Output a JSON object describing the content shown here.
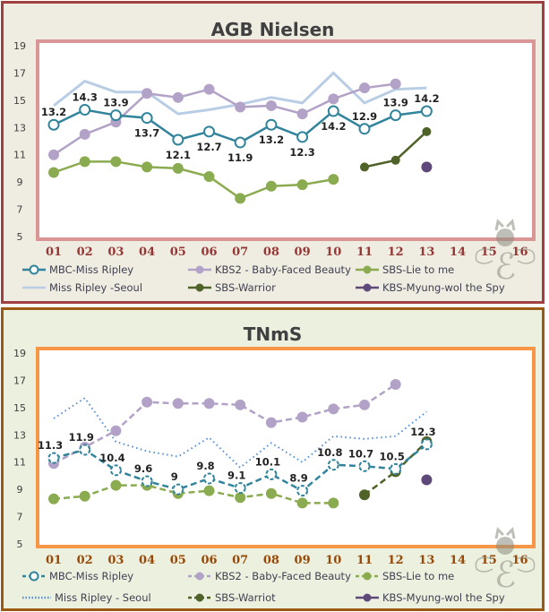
{
  "chart_data": [
    {
      "type": "line",
      "title": "AGB Nielsen",
      "xlabel": "",
      "ylabel": "",
      "ylim": [
        5,
        19
      ],
      "yticks": [
        5,
        7,
        9,
        11,
        13,
        15,
        17,
        19
      ],
      "categories": [
        "01",
        "02",
        "03",
        "04",
        "05",
        "06",
        "07",
        "08",
        "09",
        "10",
        "11",
        "12",
        "13",
        "14",
        "15",
        "16"
      ],
      "series": [
        {
          "name": "MBC-Miss Ripley",
          "color": "#31849b",
          "style": "solid",
          "marker": "open",
          "labels": true,
          "x": [
            1,
            2,
            3,
            4,
            5,
            6,
            7,
            8,
            9,
            10,
            11,
            12,
            13
          ],
          "values": [
            13.2,
            14.3,
            13.9,
            13.7,
            12.1,
            12.7,
            11.9,
            13.2,
            12.3,
            14.2,
            12.9,
            13.9,
            14.2
          ],
          "value_labels": [
            "13.2",
            "14.3",
            "13.9",
            "13.7",
            "12.1",
            "12.7",
            "11.9",
            "13.2",
            "12.3",
            "14.2",
            "12.9",
            "13.9",
            "14.2"
          ]
        },
        {
          "name": "KBS2 - Baby-Faced Beauty",
          "color": "#b3a2c7",
          "style": "solid",
          "marker": "filled",
          "x": [
            1,
            2,
            3,
            4,
            5,
            6,
            7,
            8,
            9,
            10,
            11,
            12
          ],
          "values": [
            11.0,
            12.5,
            13.4,
            15.5,
            15.2,
            15.8,
            14.5,
            14.6,
            14.0,
            15.1,
            15.9,
            16.2
          ]
        },
        {
          "name": "SBS-Lie to me",
          "color": "#8aab4f",
          "style": "solid",
          "marker": "filled",
          "x": [
            1,
            2,
            3,
            4,
            5,
            6,
            7,
            8,
            9,
            10
          ],
          "values": [
            9.7,
            10.5,
            10.5,
            10.1,
            10.0,
            9.4,
            7.8,
            8.7,
            8.8,
            9.2
          ]
        },
        {
          "name": "Miss Ripley -Seoul",
          "color": "#b9cde5",
          "style": "solid",
          "marker": "none",
          "x": [
            1,
            2,
            3,
            4,
            5,
            6,
            7,
            8,
            9,
            10,
            11,
            12,
            13
          ],
          "values": [
            14.6,
            16.4,
            15.6,
            15.6,
            14.0,
            14.3,
            14.7,
            15.2,
            14.8,
            17.0,
            14.8,
            15.8,
            15.9
          ]
        },
        {
          "name": "SBS-Warrior",
          "color": "#4f6228",
          "style": "solid",
          "marker": "filled",
          "x": [
            11,
            12,
            13
          ],
          "values": [
            10.1,
            10.6,
            12.7
          ]
        },
        {
          "name": "KBS-Myung-wol the Spy",
          "color": "#5f497a",
          "style": "solid",
          "marker": "filled",
          "x": [
            13
          ],
          "values": [
            10.1
          ]
        }
      ]
    },
    {
      "type": "line",
      "title": "TNmS",
      "xlabel": "",
      "ylabel": "",
      "ylim": [
        5,
        19
      ],
      "yticks": [
        5,
        7,
        9,
        11,
        13,
        15,
        17,
        19
      ],
      "categories": [
        "01",
        "02",
        "03",
        "04",
        "05",
        "06",
        "07",
        "08",
        "09",
        "10",
        "11",
        "12",
        "13",
        "14",
        "15",
        "16"
      ],
      "series": [
        {
          "name": "MBC-Miss Ripley",
          "color": "#31849b",
          "style": "dashed",
          "marker": "open",
          "labels": true,
          "x": [
            1,
            2,
            3,
            4,
            5,
            6,
            7,
            8,
            9,
            10,
            11,
            12,
            13
          ],
          "values": [
            11.3,
            11.9,
            10.4,
            9.6,
            9.0,
            9.8,
            9.1,
            10.1,
            8.9,
            10.8,
            10.7,
            10.5,
            12.3
          ],
          "value_labels": [
            "11.3",
            "11.9",
            "10.4",
            "9.6",
            "9",
            "9.8",
            "9.1",
            "10.1",
            "8.9",
            "10.8",
            "10.7",
            "10.5",
            "12.3"
          ]
        },
        {
          "name": "KBS2 - Baby-Faced Beauty",
          "color": "#b3a2c7",
          "style": "dashed",
          "marker": "filled",
          "x": [
            1,
            2,
            3,
            4,
            5,
            6,
            7,
            8,
            9,
            10,
            11,
            12
          ],
          "values": [
            10.9,
            12.1,
            13.3,
            15.4,
            15.3,
            15.3,
            15.2,
            13.9,
            14.3,
            14.9,
            15.2,
            16.7
          ]
        },
        {
          "name": "SBS-Lie to me",
          "color": "#8aab4f",
          "style": "dashed",
          "marker": "filled",
          "x": [
            1,
            2,
            3,
            4,
            5,
            6,
            7,
            8,
            9,
            10
          ],
          "values": [
            8.3,
            8.5,
            9.3,
            9.3,
            8.7,
            8.9,
            8.4,
            8.7,
            8.0,
            8.0
          ]
        },
        {
          "name": "Miss Ripley - Seoul",
          "color": "#558ed5",
          "style": "dotted",
          "marker": "none",
          "x": [
            1,
            2,
            3,
            4,
            5,
            6,
            7,
            8,
            9,
            10,
            11,
            12,
            13
          ],
          "values": [
            14.2,
            15.7,
            12.5,
            11.8,
            11.4,
            12.8,
            10.6,
            12.4,
            11.0,
            12.9,
            12.7,
            12.9,
            14.7
          ]
        },
        {
          "name": "SBS-Warriot",
          "color": "#4f6228",
          "style": "dashed",
          "marker": "filled",
          "x": [
            11,
            12,
            13
          ],
          "values": [
            8.6,
            10.3,
            12.5
          ]
        },
        {
          "name": "KBS-Myung-wol the Spy",
          "color": "#5f497a",
          "style": "solid",
          "marker": "filled",
          "x": [
            13
          ],
          "values": [
            9.7
          ]
        }
      ]
    }
  ]
}
